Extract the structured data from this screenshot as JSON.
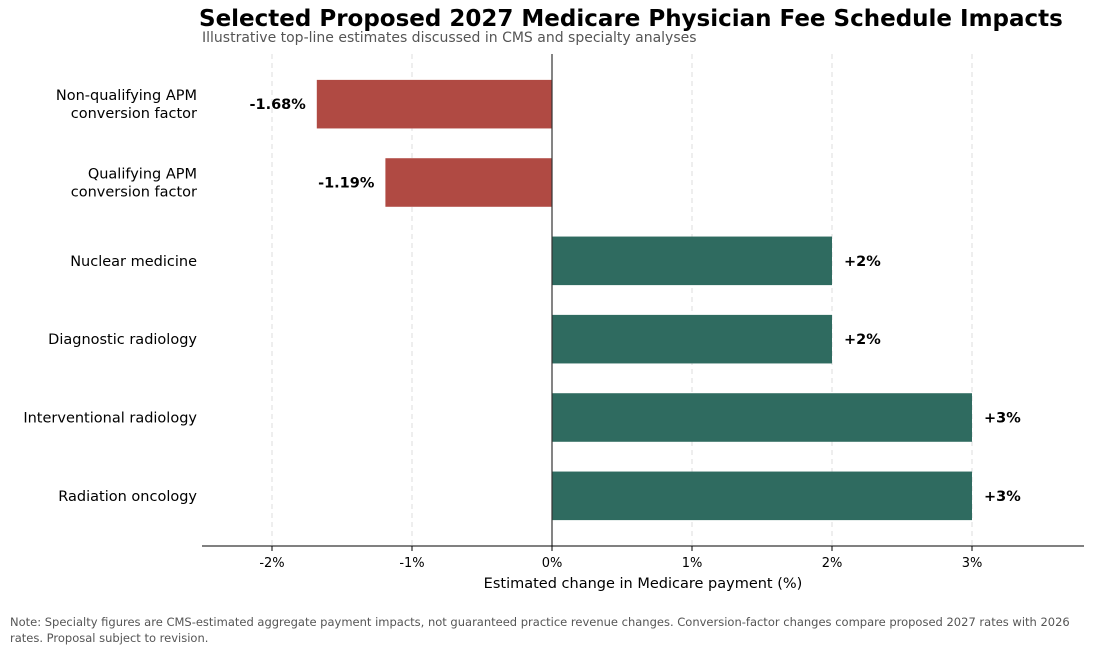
{
  "chart_data": {
    "type": "bar",
    "orientation": "horizontal",
    "title": "Selected Proposed 2027 Medicare Physician Fee Schedule Impacts",
    "subtitle": "Illustrative top-line estimates discussed in CMS and specialty analyses",
    "xlabel": "Estimated change in Medicare payment (%)",
    "ylabel": "",
    "categories": [
      [
        "Non-qualifying APM",
        "conversion factor"
      ],
      [
        "Qualifying APM",
        "conversion factor"
      ],
      [
        "Nuclear medicine"
      ],
      [
        "Diagnostic radiology"
      ],
      [
        "Interventional radiology"
      ],
      [
        "Radiation oncology"
      ]
    ],
    "values": [
      -1.68,
      -1.19,
      2,
      2,
      3,
      3
    ],
    "value_labels": [
      "-1.68%",
      "-1.19%",
      "+2%",
      "+2%",
      "+3%",
      "+3%"
    ],
    "xlim": [
      -2.5,
      3.8
    ],
    "xticks": [
      -2,
      -1,
      0,
      1,
      2,
      3
    ],
    "xtick_labels": [
      "-2%",
      "-1%",
      "0%",
      "1%",
      "2%",
      "3%"
    ],
    "grid": "vertical dashed",
    "colors": {
      "negative": "#b04a43",
      "positive": "#2f6b60"
    },
    "note": "Note: Specialty figures are CMS-estimated aggregate payment impacts, not guaranteed practice revenue changes. Conversion-factor changes compare proposed 2027 rates with 2026 rates. Proposal subject to revision."
  }
}
